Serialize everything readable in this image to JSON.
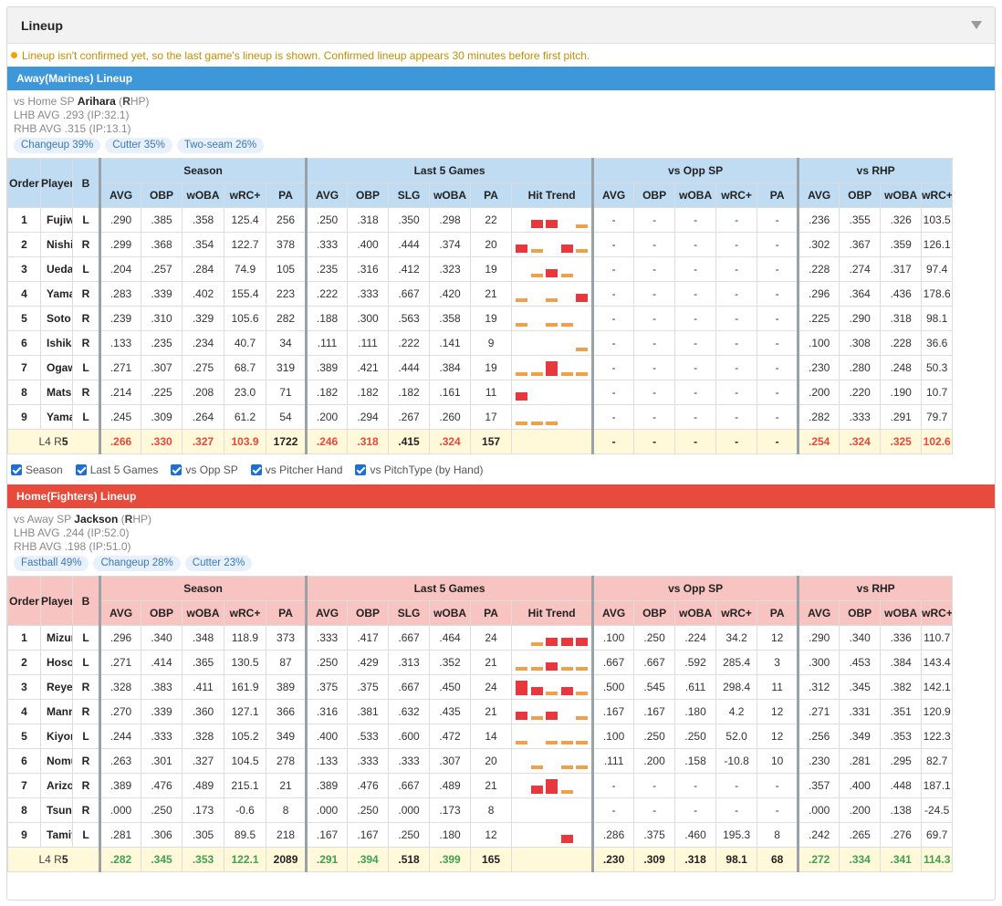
{
  "title": "Lineup",
  "notice": "Lineup isn't confirmed yet, so the last game's lineup is shown. Confirmed lineup appears 30 minutes before first pitch.",
  "colors": {
    "away": "#3d97d9",
    "home": "#e64b3b",
    "hit_high": "#e8383d",
    "hit_low": "#f0a04b"
  },
  "headers": {
    "groups": [
      "Season",
      "Last 5 Games",
      "vs Opp SP",
      "vs RHP"
    ],
    "order": "Order",
    "player": "Player",
    "bats": "B",
    "season": [
      "AVG",
      "OBP",
      "wOBA",
      "wRC+",
      "PA"
    ],
    "last5": [
      "AVG",
      "OBP",
      "SLG",
      "wOBA",
      "PA",
      "Hit Trend"
    ],
    "opp": [
      "AVG",
      "OBP",
      "wOBA",
      "wRC+",
      "PA"
    ],
    "rhp": [
      "AVG",
      "OBP",
      "wOBA",
      "wRC+"
    ]
  },
  "filters": [
    "Season",
    "Last 5 Games",
    "vs Opp SP",
    "vs Pitcher Hand",
    "vs PitchType (by Hand)"
  ],
  "away": {
    "bar": "Away(Marines) Lineup",
    "sp_prefix": "vs Home SP",
    "sp_name": "Arihara",
    "sp_hand_b": "R",
    "sp_hand_rest": "HP",
    "lhb": "LHB AVG .293 (IP:32.1)",
    "rhb": "RHB AVG .315 (IP:13.1)",
    "pitches": [
      "Changeup 39%",
      "Cutter 35%",
      "Two-seam 26%"
    ],
    "rows": [
      {
        "o": "1",
        "n": "Fujiwara",
        "b": "L",
        "s": [
          ".290",
          ".385",
          ".358",
          "125.4",
          "256"
        ],
        "l": [
          ".250",
          ".318",
          ".350",
          ".298",
          "22"
        ],
        "t": [
          0,
          2,
          2,
          0,
          1
        ],
        "p": [
          "-",
          "-",
          "-",
          "-",
          "-"
        ],
        "r": [
          ".236",
          ".355",
          ".326",
          "103.5"
        ]
      },
      {
        "o": "2",
        "n": "Nishikawa",
        "b": "R",
        "s": [
          ".299",
          ".368",
          ".354",
          "122.7",
          "378"
        ],
        "l": [
          ".333",
          ".400",
          ".444",
          ".374",
          "20"
        ],
        "t": [
          2,
          1,
          0,
          2,
          1
        ],
        "p": [
          "-",
          "-",
          "-",
          "-",
          "-"
        ],
        "r": [
          ".302",
          ".367",
          ".359",
          "126.1"
        ]
      },
      {
        "o": "3",
        "n": "Ueda",
        "b": "L",
        "s": [
          ".204",
          ".257",
          ".284",
          "74.9",
          "105"
        ],
        "l": [
          ".235",
          ".316",
          ".412",
          ".323",
          "19"
        ],
        "t": [
          0,
          1,
          2,
          1,
          0
        ],
        "p": [
          "-",
          "-",
          "-",
          "-",
          "-"
        ],
        "r": [
          ".228",
          ".274",
          ".317",
          "97.4"
        ]
      },
      {
        "o": "4",
        "n": "Yamaguchi",
        "b": "R",
        "s": [
          ".283",
          ".339",
          ".402",
          "155.4",
          "223"
        ],
        "l": [
          ".222",
          ".333",
          ".667",
          ".420",
          "21"
        ],
        "t": [
          1,
          0,
          1,
          0,
          2
        ],
        "p": [
          "-",
          "-",
          "-",
          "-",
          "-"
        ],
        "r": [
          ".296",
          ".364",
          ".436",
          "178.6"
        ]
      },
      {
        "o": "5",
        "n": "Soto",
        "b": "R",
        "s": [
          ".239",
          ".310",
          ".329",
          "105.6",
          "282"
        ],
        "l": [
          ".188",
          ".300",
          ".563",
          ".358",
          "19"
        ],
        "t": [
          1,
          0,
          1,
          1,
          0
        ],
        "p": [
          "-",
          "-",
          "-",
          "-",
          "-"
        ],
        "r": [
          ".225",
          ".290",
          ".318",
          "98.1"
        ]
      },
      {
        "o": "6",
        "n": "Ishikawa",
        "b": "R",
        "s": [
          ".133",
          ".235",
          ".234",
          "40.7",
          "34"
        ],
        "l": [
          ".111",
          ".111",
          ".222",
          ".141",
          "9"
        ],
        "t": [
          0,
          0,
          0,
          0,
          1
        ],
        "p": [
          "-",
          "-",
          "-",
          "-",
          "-"
        ],
        "r": [
          ".100",
          ".308",
          ".228",
          "36.6"
        ]
      },
      {
        "o": "7",
        "n": "Ogawa",
        "b": "L",
        "s": [
          ".271",
          ".307",
          ".275",
          "68.7",
          "319"
        ],
        "l": [
          ".389",
          ".421",
          ".444",
          ".384",
          "19"
        ],
        "t": [
          1,
          1,
          3,
          1,
          1
        ],
        "p": [
          "-",
          "-",
          "-",
          "-",
          "-"
        ],
        "r": [
          ".230",
          ".280",
          ".248",
          "50.3"
        ]
      },
      {
        "o": "8",
        "n": "Matsukawa",
        "b": "R",
        "s": [
          ".214",
          ".225",
          ".208",
          "23.0",
          "71"
        ],
        "l": [
          ".182",
          ".182",
          ".182",
          ".161",
          "11"
        ],
        "t": [
          2,
          0,
          0,
          0,
          0
        ],
        "p": [
          "-",
          "-",
          "-",
          "-",
          "-"
        ],
        "r": [
          ".200",
          ".220",
          ".190",
          "10.7"
        ]
      },
      {
        "o": "9",
        "n": "Yamasaki",
        "b": "L",
        "s": [
          ".245",
          ".309",
          ".264",
          "61.2",
          "54"
        ],
        "l": [
          ".200",
          ".294",
          ".267",
          ".260",
          "17"
        ],
        "t": [
          1,
          1,
          1,
          0,
          0
        ],
        "p": [
          "-",
          "-",
          "-",
          "-",
          "-"
        ],
        "r": [
          ".282",
          ".333",
          ".291",
          "79.7"
        ]
      }
    ],
    "sum": {
      "l": "L4 ",
      "r": "R",
      "rn": "5",
      "s": [
        ".266",
        ".330",
        ".327",
        "103.9",
        "1722"
      ],
      "l5": [
        ".246",
        ".318",
        ".415",
        ".324",
        "157"
      ],
      "p": [
        "-",
        "-",
        "-",
        "-",
        "-"
      ],
      "r4": [
        ".254",
        ".324",
        ".325",
        "102.6"
      ]
    }
  },
  "home": {
    "bar": "Home(Fighters) Lineup",
    "sp_prefix": "vs Away SP",
    "sp_name": "Jackson",
    "sp_hand_b": "R",
    "sp_hand_rest": "HP",
    "lhb": "LHB AVG .244 (IP:52.0)",
    "rhb": "RHB AVG .198 (IP:51.0)",
    "pitches": [
      "Fastball 49%",
      "Changeup 28%",
      "Cutter 23%"
    ],
    "rows": [
      {
        "o": "1",
        "n": "Mizuno",
        "b": "L",
        "s": [
          ".296",
          ".340",
          ".348",
          "118.9",
          "373"
        ],
        "l": [
          ".333",
          ".417",
          ".667",
          ".464",
          "24"
        ],
        "t": [
          0,
          1,
          2,
          2,
          2
        ],
        "p": [
          ".100",
          ".250",
          ".224",
          "34.2",
          "12"
        ],
        "r": [
          ".290",
          ".340",
          ".336",
          "110.7"
        ]
      },
      {
        "o": "2",
        "n": "Hosokawa",
        "b": "L",
        "s": [
          ".271",
          ".414",
          ".365",
          "130.5",
          "87"
        ],
        "l": [
          ".250",
          ".429",
          ".313",
          ".352",
          "21"
        ],
        "t": [
          1,
          1,
          2,
          1,
          1
        ],
        "p": [
          ".667",
          ".667",
          ".592",
          "285.4",
          "3"
        ],
        "r": [
          ".300",
          ".453",
          ".384",
          "143.4"
        ]
      },
      {
        "o": "3",
        "n": "Reyes",
        "b": "R",
        "s": [
          ".328",
          ".383",
          ".411",
          "161.9",
          "389"
        ],
        "l": [
          ".375",
          ".375",
          ".667",
          ".450",
          "24"
        ],
        "t": [
          3,
          2,
          1,
          2,
          1
        ],
        "p": [
          ".500",
          ".545",
          ".611",
          "298.4",
          "11"
        ],
        "r": [
          ".312",
          ".345",
          ".382",
          "142.1"
        ]
      },
      {
        "o": "4",
        "n": "Mannami",
        "b": "R",
        "s": [
          ".270",
          ".339",
          ".360",
          "127.1",
          "366"
        ],
        "l": [
          ".316",
          ".381",
          ".632",
          ".435",
          "21"
        ],
        "t": [
          2,
          1,
          2,
          0,
          1
        ],
        "p": [
          ".167",
          ".167",
          ".180",
          "4.2",
          "12"
        ],
        "r": [
          ".271",
          ".331",
          ".351",
          "120.9"
        ]
      },
      {
        "o": "5",
        "n": "Kiyomiya",
        "b": "L",
        "s": [
          ".244",
          ".333",
          ".328",
          "105.2",
          "349"
        ],
        "l": [
          ".400",
          ".533",
          ".600",
          ".472",
          "14"
        ],
        "t": [
          1,
          0,
          1,
          1,
          1
        ],
        "p": [
          ".100",
          ".250",
          ".250",
          "52.0",
          "12"
        ],
        "r": [
          ".256",
          ".349",
          ".353",
          "122.3"
        ]
      },
      {
        "o": "6",
        "n": "Nomura",
        "b": "R",
        "s": [
          ".263",
          ".301",
          ".327",
          "104.5",
          "278"
        ],
        "l": [
          ".133",
          ".333",
          ".333",
          ".307",
          "20"
        ],
        "t": [
          0,
          1,
          0,
          1,
          1
        ],
        "p": [
          ".111",
          ".200",
          ".158",
          "-10.8",
          "10"
        ],
        "r": [
          ".230",
          ".281",
          ".295",
          "82.7"
        ]
      },
      {
        "o": "7",
        "n": "Arizono",
        "b": "R",
        "s": [
          ".389",
          ".476",
          ".489",
          "215.1",
          "21"
        ],
        "l": [
          ".389",
          ".476",
          ".667",
          ".489",
          "21"
        ],
        "t": [
          0,
          2,
          3,
          1,
          0
        ],
        "p": [
          "-",
          "-",
          "-",
          "-",
          "-"
        ],
        "r": [
          ".357",
          ".400",
          ".448",
          "187.1"
        ]
      },
      {
        "o": "8",
        "n": "Tsuneya",
        "b": "R",
        "s": [
          ".000",
          ".250",
          ".173",
          "-0.6",
          "8"
        ],
        "l": [
          ".000",
          ".250",
          ".000",
          ".173",
          "8"
        ],
        "t": [
          0,
          0,
          0,
          0,
          0
        ],
        "p": [
          "-",
          "-",
          "-",
          "-",
          "-"
        ],
        "r": [
          ".000",
          ".200",
          ".138",
          "-24.5"
        ]
      },
      {
        "o": "9",
        "n": "Tamiya",
        "b": "L",
        "s": [
          ".281",
          ".306",
          ".305",
          "89.5",
          "218"
        ],
        "l": [
          ".167",
          ".167",
          ".250",
          ".180",
          "12"
        ],
        "t": [
          0,
          0,
          0,
          2,
          0
        ],
        "p": [
          ".286",
          ".375",
          ".460",
          "195.3",
          "8"
        ],
        "r": [
          ".242",
          ".265",
          ".276",
          "69.7"
        ]
      }
    ],
    "sum": {
      "l": "L4 ",
      "r": "R",
      "rn": "5",
      "s": [
        ".282",
        ".345",
        ".353",
        "122.1",
        "2089"
      ],
      "l5": [
        ".291",
        ".394",
        ".518",
        ".399",
        "165"
      ],
      "p": [
        ".230",
        ".309",
        ".318",
        "98.1",
        "68"
      ],
      "r4": [
        ".272",
        ".334",
        ".341",
        "114.3"
      ]
    }
  }
}
